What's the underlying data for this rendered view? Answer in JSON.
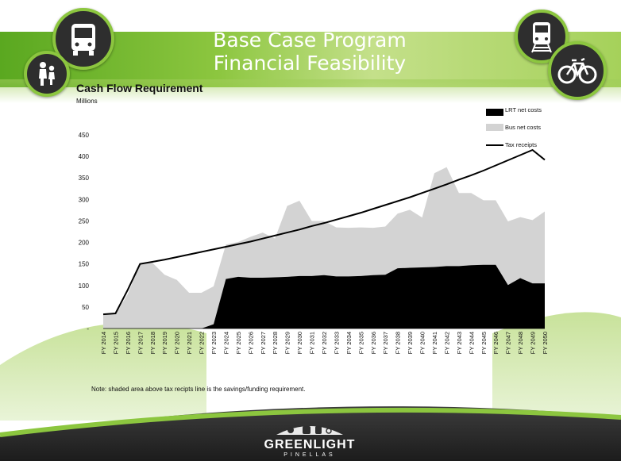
{
  "slide": {
    "title_line1": "Base Case Program",
    "title_line2": "Financial Feasibility",
    "note": "Note:  shaded area above tax recipts line is the savings/funding requirement."
  },
  "logo": {
    "name": "GREENLIGHT",
    "sub": "PINELLAS"
  },
  "icons": [
    "bus-icon",
    "pedestrians-icon",
    "train-icon",
    "bicycle-icon"
  ],
  "colors": {
    "green": "#8cc63f",
    "dark_green": "#5aa820",
    "lrt": "#000000",
    "bus": "#d3d3d3",
    "tax": "#000000"
  },
  "chart_data": {
    "type": "area",
    "title": "Cash Flow Requirement",
    "subtitle": "Millions",
    "xlabel": "",
    "ylabel": "",
    "ylim": [
      0,
      450
    ],
    "yticks": [
      450,
      400,
      350,
      300,
      250,
      200,
      150,
      100,
      50,
      0
    ],
    "ytick_labels": [
      "450",
      "400",
      "350",
      "300",
      "250",
      "200",
      "150",
      "100",
      "50",
      "-"
    ],
    "legend_position": "top-right",
    "categories": [
      "FY 2014",
      "FY 2015",
      "FY 2016",
      "FY 2017",
      "FY 2018",
      "FY 2019",
      "FY 2020",
      "FY 2021",
      "FY 2022",
      "FY 2023",
      "FY 2024",
      "FY 2025",
      "FY 2026",
      "FY 2027",
      "FY 2028",
      "FY 2029",
      "FY 2030",
      "FY 2031",
      "FY 2032",
      "FY 2033",
      "FY 2034",
      "FY 2035",
      "FY 2036",
      "FY 2037",
      "FY 2038",
      "FY 2039",
      "FY 2040",
      "FY 2041",
      "FY 2042",
      "FY 2043",
      "FY 2044",
      "FY 2045",
      "FY 2046",
      "FY 2047",
      "FY 2048",
      "FY 2049",
      "FY 2050"
    ],
    "series": [
      {
        "name": "LRT net costs",
        "kind": "area",
        "values": [
          0,
          0,
          0,
          0,
          0,
          0,
          0,
          0,
          0,
          10,
          115,
          120,
          118,
          118,
          119,
          120,
          122,
          122,
          124,
          121,
          121,
          122,
          124,
          125,
          140,
          141,
          142,
          143,
          145,
          145,
          147,
          148,
          148,
          101,
          117,
          105,
          105
        ]
      },
      {
        "name": "Bus net costs",
        "kind": "stacked-area",
        "values": [
          33,
          33,
          80,
          150,
          153,
          125,
          113,
          83,
          83,
          88,
          80,
          81,
          95,
          105,
          90,
          165,
          175,
          128,
          126,
          114,
          113,
          113,
          110,
          112,
          127,
          135,
          116,
          218,
          230,
          170,
          168,
          150,
          150,
          148,
          142,
          147,
          167
        ]
      },
      {
        "name": "Tax receipts",
        "kind": "line",
        "values": [
          33,
          35,
          90,
          150,
          155,
          160,
          166,
          172,
          178,
          184,
          190,
          196,
          202,
          209,
          216,
          223,
          230,
          238,
          245,
          253,
          261,
          269,
          278,
          287,
          296,
          305,
          315,
          325,
          335,
          346,
          356,
          367,
          379,
          391,
          403,
          415,
          392
        ]
      }
    ]
  }
}
